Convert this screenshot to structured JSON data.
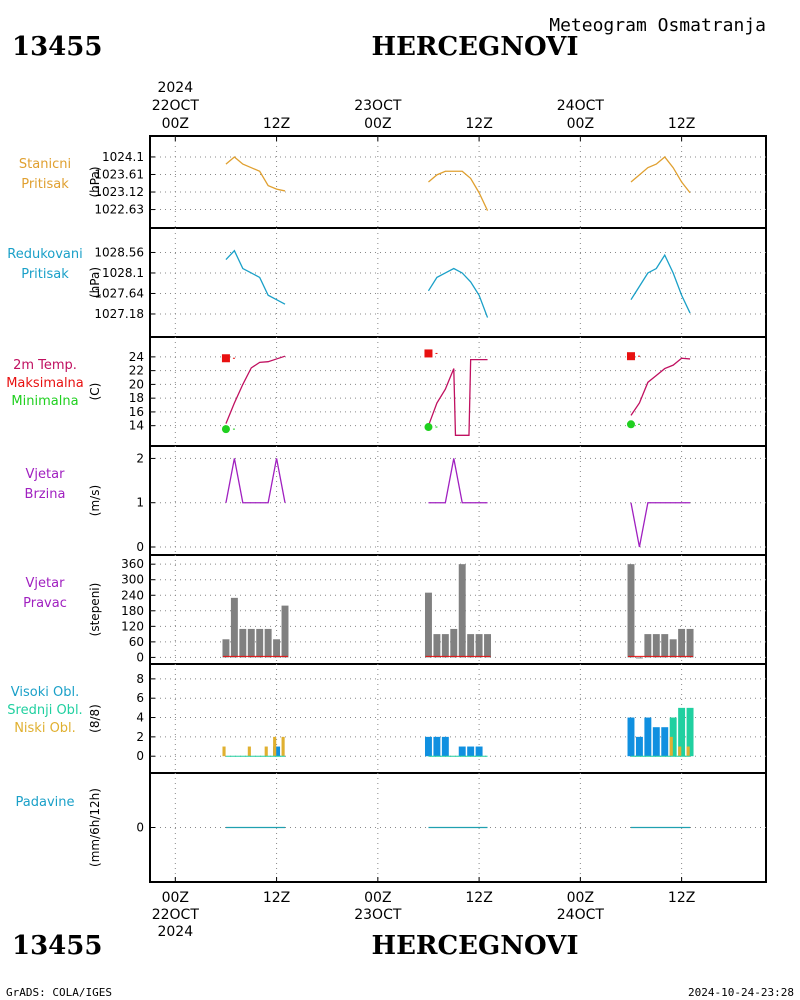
{
  "header": {
    "station_id": "13455",
    "station_name": "HERCEGNOVI",
    "meteogram_title": "Meteogram Osmatranja",
    "footer_left": "GrADS: COLA/IGES",
    "footer_right": "2024-10-24-23:28"
  },
  "time_axis": {
    "top_labels": [
      {
        "t": 0,
        "lines": [
          "2024",
          "22OCT",
          "00Z"
        ]
      },
      {
        "t": 12,
        "lines": [
          "12Z"
        ]
      },
      {
        "t": 24,
        "lines": [
          "23OCT",
          "00Z"
        ]
      },
      {
        "t": 36,
        "lines": [
          "12Z"
        ]
      },
      {
        "t": 48,
        "lines": [
          "24OCT",
          "00Z"
        ]
      },
      {
        "t": 60,
        "lines": [
          "12Z"
        ]
      }
    ],
    "bottom_labels": [
      {
        "t": 0,
        "lines": [
          "00Z",
          "22OCT",
          "2024"
        ]
      },
      {
        "t": 12,
        "lines": [
          "12Z"
        ]
      },
      {
        "t": 24,
        "lines": [
          "00Z",
          "23OCT"
        ]
      },
      {
        "t": 36,
        "lines": [
          "12Z"
        ]
      },
      {
        "t": 48,
        "lines": [
          "00Z",
          "24OCT"
        ]
      },
      {
        "t": 60,
        "lines": [
          "12Z"
        ]
      }
    ],
    "range_hours": [
      -3,
      70
    ]
  },
  "colors": {
    "station_pressure": "#e0a030",
    "reduced_pressure": "#1aa0c8",
    "temperature": "#c01060",
    "tmax": "#e81010",
    "tmin": "#20d020",
    "wind": "#a020c0",
    "wind_dir_bar": "#808080",
    "cloud_high": "#1090e0",
    "cloud_mid": "#20d0a0",
    "cloud_low": "#e0b030",
    "precip": "#20a0b0",
    "gridline": "#888888"
  },
  "chart_data": [
    {
      "type": "line",
      "id": "station_pressure",
      "labels": [
        "Stanicni",
        "Pritisak"
      ],
      "ylabel": "(hPa)",
      "yticks": [
        "1024.1",
        "1023.61",
        "1023.12",
        "1022.63"
      ],
      "ylim": [
        1022.45,
        1024.35
      ],
      "segments": [
        {
          "x": [
            6,
            7,
            8,
            9,
            10,
            11,
            12,
            13
          ],
          "y": [
            1023.9,
            1024.1,
            1023.9,
            1023.8,
            1023.7,
            1023.3,
            1023.2,
            1023.15
          ]
        },
        {
          "x": [
            30,
            31,
            32,
            33,
            34,
            35,
            36,
            37
          ],
          "y": [
            1023.4,
            1023.6,
            1023.7,
            1023.7,
            1023.7,
            1023.5,
            1023.1,
            1022.6
          ]
        },
        {
          "x": [
            54,
            55,
            56,
            57,
            58,
            59,
            60,
            61
          ],
          "y": [
            1023.4,
            1023.6,
            1023.8,
            1023.9,
            1024.1,
            1023.8,
            1023.4,
            1023.1
          ]
        }
      ]
    },
    {
      "type": "line",
      "id": "reduced_pressure",
      "labels": [
        "Redukovani",
        "Pritisak"
      ],
      "ylabel": "(hPa)",
      "yticks": [
        "1028.56",
        "1028.1",
        "1027.64",
        "1027.18"
      ],
      "ylim": [
        1027.0,
        1028.75
      ],
      "segments": [
        {
          "x": [
            6,
            7,
            8,
            9,
            10,
            11,
            12,
            13
          ],
          "y": [
            1028.4,
            1028.6,
            1028.2,
            1028.1,
            1028.0,
            1027.6,
            1027.5,
            1027.4
          ]
        },
        {
          "x": [
            30,
            31,
            32,
            33,
            34,
            35,
            36,
            37
          ],
          "y": [
            1027.7,
            1028.0,
            1028.1,
            1028.2,
            1028.1,
            1027.9,
            1027.6,
            1027.1
          ]
        },
        {
          "x": [
            54,
            55,
            56,
            57,
            58,
            59,
            60,
            61
          ],
          "y": [
            1027.5,
            1027.8,
            1028.1,
            1028.2,
            1028.5,
            1028.1,
            1027.6,
            1027.2
          ]
        }
      ]
    },
    {
      "type": "line",
      "id": "temperature",
      "labels": [
        "2m Temp.",
        "Maksimalna",
        "Minimalna"
      ],
      "ylabel": "(C)",
      "yticks": [
        "24",
        "22",
        "20",
        "18",
        "16",
        "14"
      ],
      "ylim": [
        12.5,
        25.0
      ],
      "segments": [
        {
          "x": [
            6,
            7,
            8,
            9,
            10,
            11,
            12,
            13
          ],
          "y": [
            14.3,
            17.3,
            20.0,
            22.4,
            23.2,
            23.3,
            23.7,
            24.1
          ]
        },
        {
          "x": [
            30,
            31,
            32,
            33,
            33.2,
            34.8,
            35,
            36,
            37
          ],
          "y": [
            14.0,
            17.3,
            19.3,
            22.3,
            12.6,
            12.6,
            23.6,
            23.6,
            23.6
          ]
        },
        {
          "x": [
            54,
            55,
            56,
            57,
            58,
            59,
            60,
            61
          ],
          "y": [
            15.5,
            17.3,
            20.3,
            21.3,
            22.3,
            22.8,
            23.8,
            23.7
          ]
        }
      ],
      "tmax": [
        {
          "x": 6,
          "y": 23.8
        },
        {
          "x": 30,
          "y": 24.5
        },
        {
          "x": 54,
          "y": 24.1
        }
      ],
      "tmin": [
        {
          "x": 6,
          "y": 13.5
        },
        {
          "x": 30,
          "y": 13.8
        },
        {
          "x": 54,
          "y": 14.2
        }
      ]
    },
    {
      "type": "line",
      "id": "wind_speed",
      "labels": [
        "Vjetar",
        "Brzina"
      ],
      "ylabel": "(m/s)",
      "yticks": [
        "2",
        "1",
        "0"
      ],
      "ylim": [
        0,
        2.1
      ],
      "segments": [
        {
          "x": [
            6,
            7,
            8,
            9,
            10,
            11,
            12,
            13
          ],
          "y": [
            1,
            2,
            1,
            1,
            1,
            1,
            2,
            1
          ]
        },
        {
          "x": [
            30,
            31,
            32,
            33,
            34,
            35,
            36,
            37
          ],
          "y": [
            1,
            1,
            1,
            2,
            1,
            1,
            1,
            1
          ]
        },
        {
          "x": [
            54,
            55,
            56,
            57,
            58,
            59,
            60,
            61
          ],
          "y": [
            1,
            0,
            1,
            1,
            1,
            1,
            1,
            1
          ]
        }
      ]
    },
    {
      "type": "bar",
      "id": "wind_direction",
      "labels": [
        "Vjetar",
        "Pravac"
      ],
      "ylabel": "(stepeni)",
      "yticks": [
        "360",
        "300",
        "240",
        "180",
        "120",
        "60",
        "0"
      ],
      "ylim": [
        -10,
        380
      ],
      "bars": [
        {
          "x": 6,
          "v": 70
        },
        {
          "x": 7,
          "v": 230
        },
        {
          "x": 8,
          "v": 110
        },
        {
          "x": 9,
          "v": 110
        },
        {
          "x": 10,
          "v": 110
        },
        {
          "x": 11,
          "v": 110
        },
        {
          "x": 12,
          "v": 70
        },
        {
          "x": 13,
          "v": 200
        },
        {
          "x": 30,
          "v": 250
        },
        {
          "x": 31,
          "v": 90
        },
        {
          "x": 32,
          "v": 90
        },
        {
          "x": 33,
          "v": 110
        },
        {
          "x": 34,
          "v": 360
        },
        {
          "x": 35,
          "v": 90
        },
        {
          "x": 36,
          "v": 90
        },
        {
          "x": 37,
          "v": 90
        },
        {
          "x": 54,
          "v": 360
        },
        {
          "x": 55,
          "v": 0
        },
        {
          "x": 56,
          "v": 90
        },
        {
          "x": 57,
          "v": 90
        },
        {
          "x": 58,
          "v": 90
        },
        {
          "x": 59,
          "v": 70
        },
        {
          "x": 60,
          "v": 110
        },
        {
          "x": 61,
          "v": 110
        }
      ]
    },
    {
      "type": "bar",
      "id": "cloud_cover",
      "labels": [
        "Visoki Obl.",
        "Srednji Obl.",
        "Niski Obl."
      ],
      "ylabel": "(8/8)",
      "yticks": [
        "8",
        "6",
        "4",
        "2",
        "0"
      ],
      "ylim": [
        -0.6,
        8.4
      ],
      "high": [
        {
          "x": 12,
          "v": 1
        },
        {
          "x": 30,
          "v": 2
        },
        {
          "x": 31,
          "v": 2
        },
        {
          "x": 32,
          "v": 2
        },
        {
          "x": 34,
          "v": 1
        },
        {
          "x": 35,
          "v": 1
        },
        {
          "x": 36,
          "v": 1
        },
        {
          "x": 54,
          "v": 4
        },
        {
          "x": 55,
          "v": 2
        },
        {
          "x": 56,
          "v": 4
        },
        {
          "x": 57,
          "v": 3
        },
        {
          "x": 58,
          "v": 3
        }
      ],
      "mid": [
        {
          "x": 59,
          "v": 4
        },
        {
          "x": 60,
          "v": 5
        },
        {
          "x": 61,
          "v": 5
        }
      ],
      "low": [
        {
          "x": 6,
          "v": 1
        },
        {
          "x": 9,
          "v": 1
        },
        {
          "x": 11,
          "v": 1
        },
        {
          "x": 12,
          "v": 2
        },
        {
          "x": 13,
          "v": 2
        },
        {
          "x": 59,
          "v": 2
        },
        {
          "x": 60,
          "v": 1
        },
        {
          "x": 61,
          "v": 1
        }
      ]
    },
    {
      "type": "line",
      "id": "precipitation",
      "labels": [
        "Padavine"
      ],
      "ylabel": "(mm/6h/12h)",
      "yticks": [
        "0"
      ],
      "ylim": [
        -5,
        5
      ],
      "segments": [
        {
          "x": [
            6,
            13
          ],
          "y": [
            0,
            0
          ]
        },
        {
          "x": [
            30,
            37
          ],
          "y": [
            0,
            0
          ]
        },
        {
          "x": [
            54,
            61
          ],
          "y": [
            0,
            0
          ]
        }
      ]
    }
  ]
}
